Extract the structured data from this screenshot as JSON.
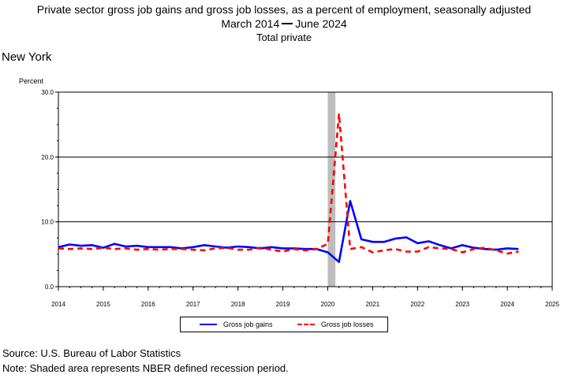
{
  "title": {
    "line1": "Private sector gross job gains and gross job losses, as a percent of employment, seasonally adjusted",
    "line2_start": "March 2014",
    "line2_end": "June 2024",
    "line3": "Total private"
  },
  "region": "New York",
  "footer": {
    "source": "Source: U.S. Bureau of Labor Statistics",
    "note": "Note: Shaded area represents NBER defined recession period."
  },
  "colors": {
    "gains": "#0000ff",
    "losses": "#ff0000",
    "recession": "#bdbdbd"
  },
  "chart_data": {
    "type": "line",
    "ylabel": "Percent",
    "ylim": [
      0,
      30
    ],
    "xlim": [
      2014,
      2025
    ],
    "yticks": [
      "0.0",
      "10.0",
      "20.0",
      "30.0"
    ],
    "xticks": [
      "2014",
      "2015",
      "2016",
      "2017",
      "2018",
      "2019",
      "2020",
      "2021",
      "2022",
      "2023",
      "2024",
      "2025"
    ],
    "grid": "horizontal",
    "legend_position": "bottom",
    "recession": {
      "start": 2020.0,
      "end": 2020.17
    },
    "x": [
      2014.0,
      2014.25,
      2014.5,
      2014.75,
      2015.0,
      2015.25,
      2015.5,
      2015.75,
      2016.0,
      2016.25,
      2016.5,
      2016.75,
      2017.0,
      2017.25,
      2017.5,
      2017.75,
      2018.0,
      2018.25,
      2018.5,
      2018.75,
      2019.0,
      2019.25,
      2019.5,
      2019.75,
      2020.0,
      2020.25,
      2020.5,
      2020.75,
      2021.0,
      2021.25,
      2021.5,
      2021.75,
      2022.0,
      2022.25,
      2022.5,
      2022.75,
      2023.0,
      2023.25,
      2023.5,
      2023.75,
      2024.0,
      2024.25
    ],
    "series": [
      {
        "name": "Gross job gains",
        "style": "solid",
        "values": [
          6.1,
          6.5,
          6.3,
          6.4,
          6.0,
          6.6,
          6.2,
          6.3,
          6.1,
          6.1,
          6.1,
          5.9,
          6.1,
          6.4,
          6.2,
          6.0,
          6.2,
          6.1,
          5.9,
          6.1,
          5.9,
          5.9,
          5.8,
          5.8,
          5.3,
          3.8,
          13.2,
          7.3,
          6.9,
          6.9,
          7.4,
          7.6,
          6.7,
          7.0,
          6.4,
          5.9,
          6.4,
          6.0,
          5.8,
          5.7,
          5.9,
          5.8
        ]
      },
      {
        "name": "Gross job losses",
        "style": "dashed",
        "values": [
          5.9,
          5.8,
          5.9,
          5.8,
          6.0,
          5.8,
          5.9,
          5.7,
          5.8,
          5.7,
          5.8,
          5.8,
          5.7,
          5.6,
          5.9,
          6.0,
          5.7,
          5.7,
          6.0,
          5.7,
          5.4,
          5.8,
          5.6,
          5.8,
          6.6,
          26.7,
          5.8,
          6.1,
          5.3,
          5.6,
          5.8,
          5.4,
          5.4,
          6.1,
          5.9,
          5.8,
          5.3,
          5.8,
          6.0,
          5.6,
          5.1,
          5.4
        ]
      }
    ]
  }
}
